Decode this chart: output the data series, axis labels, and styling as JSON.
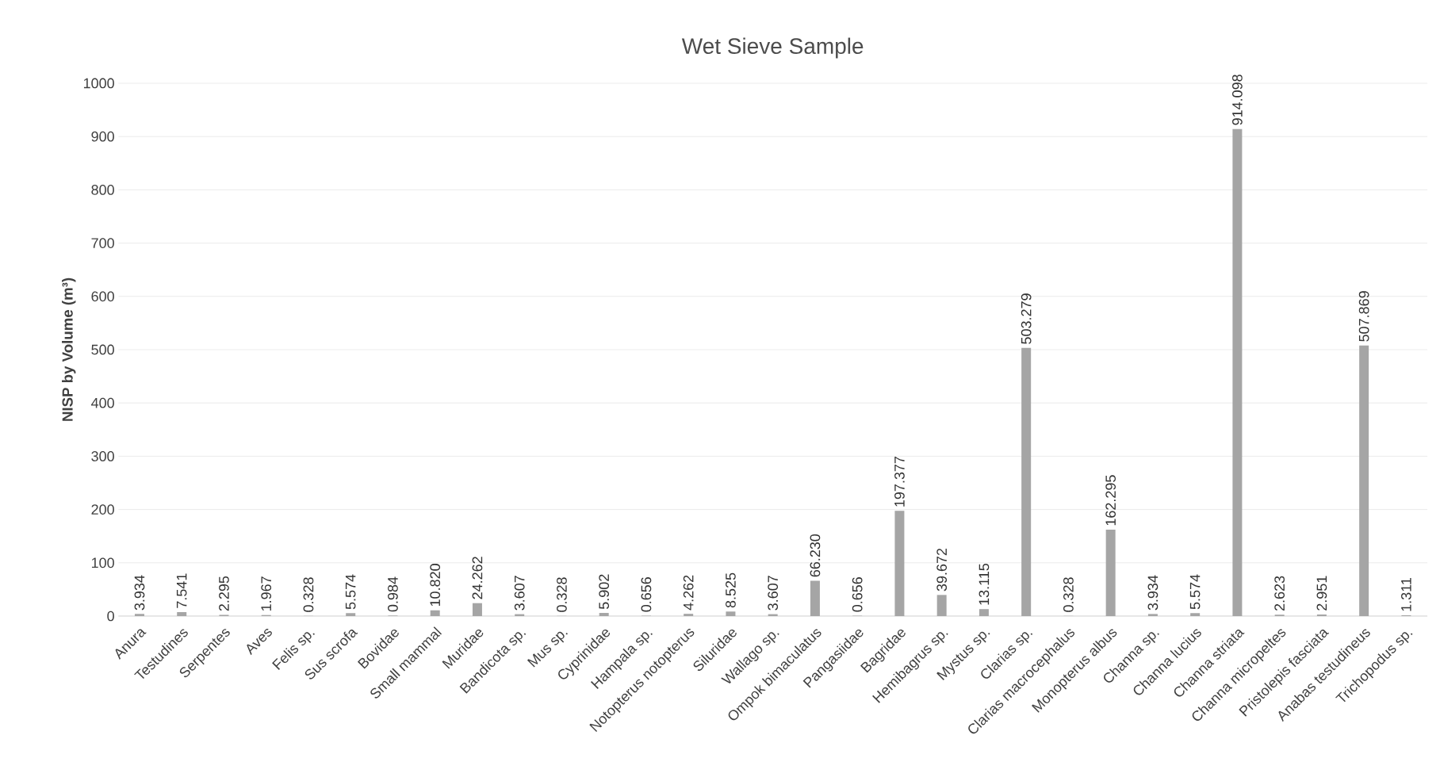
{
  "chart_data": {
    "type": "bar",
    "title": "Wet Sieve Sample",
    "ylabel": "**NISP by Volume (m³)**",
    "categories": [
      "Anura",
      "Testudines",
      "Serpentes",
      "Aves",
      "Felis sp.",
      "Sus scrofa",
      "Bovidae",
      "Small mammal",
      "Muridae",
      "Bandicota sp.",
      "Mus sp.",
      "Cyprinidae",
      "Hampala sp.",
      "Notopterus notopterus",
      "Siluridae",
      "Wallago sp.",
      "Ompok bimaculatus",
      "Pangasiidae",
      "Bagridae",
      "Hemibagrus sp.",
      "Mystus sp.",
      "Clarias sp.",
      "Clarias macrocephalus",
      "Monopterus albus",
      "Channa sp.",
      "Channa lucius",
      "Channa striata",
      "Channa micropeltes",
      "Pristolepis fasciata",
      "Anabas testudineus",
      "Trichopodus sp."
    ],
    "values": [
      3.934,
      7.541,
      2.295,
      1.967,
      0.328,
      5.574,
      0.984,
      10.82,
      24.262,
      3.607,
      0.328,
      5.902,
      0.656,
      4.262,
      8.525,
      3.607,
      66.23,
      0.656,
      197.377,
      39.672,
      13.115,
      503.279,
      0.328,
      162.295,
      3.934,
      5.574,
      914.098,
      2.623,
      2.951,
      507.869,
      1.311
    ],
    "value_labels": [
      "3.934",
      "7.541",
      "2.295",
      "1.967",
      "0.328",
      "5.574",
      "0.984",
      "10.820",
      "24.262",
      "3.607",
      "0.328",
      "5.902",
      "0.656",
      "4.262",
      "8.525",
      "3.607",
      "66.230",
      "0.656",
      "197.377",
      "39.672",
      "13.115",
      "503.279",
      "0.328",
      "162.295",
      "3.934",
      "5.574",
      "914.098",
      "2.623",
      "2.951",
      "507.869",
      "1.311"
    ],
    "color": "#a5a5a5",
    "ylim": [
      0,
      1000
    ],
    "yticks": [
      0,
      100,
      200,
      300,
      400,
      500,
      600,
      700,
      800,
      900,
      1000
    ],
    "grid": "y"
  }
}
